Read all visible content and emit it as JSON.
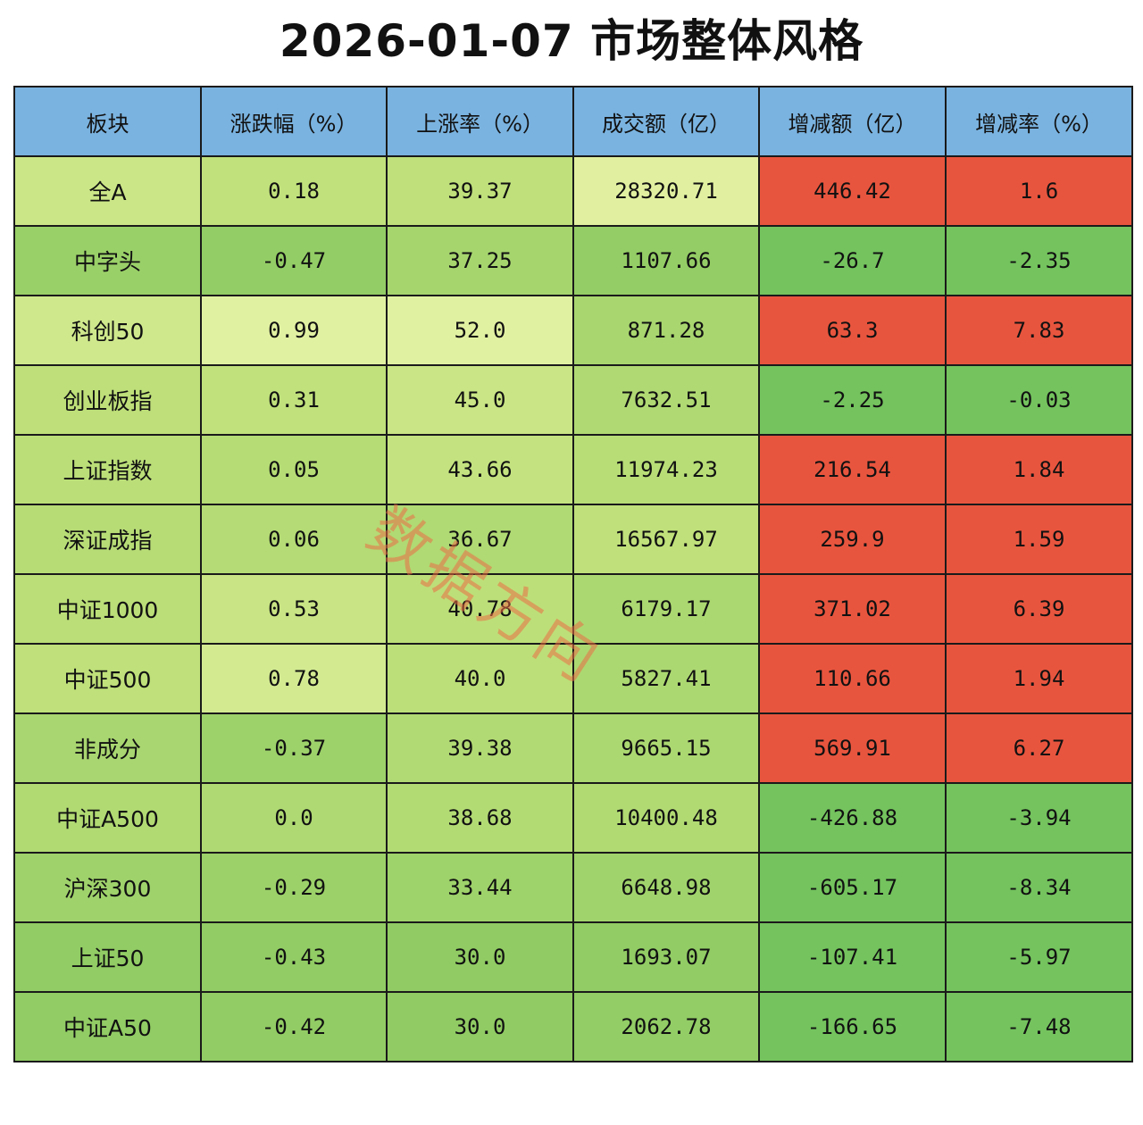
{
  "chart_data": {
    "type": "table",
    "title": "2026-01-07 市场整体风格",
    "columns": [
      "板块",
      "涨跌幅（%）",
      "上涨率（%）",
      "成交额（亿）",
      "增减额（亿）",
      "增减率（%）"
    ],
    "rows": [
      [
        "全A",
        "0.18",
        "39.37",
        "28320.71",
        "446.42",
        "1.6"
      ],
      [
        "中字头",
        "-0.47",
        "37.25",
        "1107.66",
        "-26.7",
        "-2.35"
      ],
      [
        "科创50",
        "0.99",
        "52.0",
        "871.28",
        "63.3",
        "7.83"
      ],
      [
        "创业板指",
        "0.31",
        "45.0",
        "7632.51",
        "-2.25",
        "-0.03"
      ],
      [
        "上证指数",
        "0.05",
        "43.66",
        "11974.23",
        "216.54",
        "1.84"
      ],
      [
        "深证成指",
        "0.06",
        "36.67",
        "16567.97",
        "259.9",
        "1.59"
      ],
      [
        "中证1000",
        "0.53",
        "40.78",
        "6179.17",
        "371.02",
        "6.39"
      ],
      [
        "中证500",
        "0.78",
        "40.0",
        "5827.41",
        "110.66",
        "1.94"
      ],
      [
        "非成分",
        "-0.37",
        "39.38",
        "9665.15",
        "569.91",
        "6.27"
      ],
      [
        "中证A500",
        "0.0",
        "38.68",
        "10400.48",
        "-426.88",
        "-3.94"
      ],
      [
        "沪深300",
        "-0.29",
        "33.44",
        "6648.98",
        "-605.17",
        "-8.34"
      ],
      [
        "上证50",
        "-0.43",
        "30.0",
        "1693.07",
        "-107.41",
        "-5.97"
      ],
      [
        "中证A50",
        "-0.42",
        "30.0",
        "2062.78",
        "-166.65",
        "-7.48"
      ]
    ],
    "colors": {
      "header": "#7ab3e0",
      "increase": "#e8553e",
      "decrease": "#74c35e",
      "neutral_gradient": [
        "#8fcb63",
        "#bfe07a",
        "#eef7b0"
      ]
    }
  },
  "watermark": "数据方向"
}
